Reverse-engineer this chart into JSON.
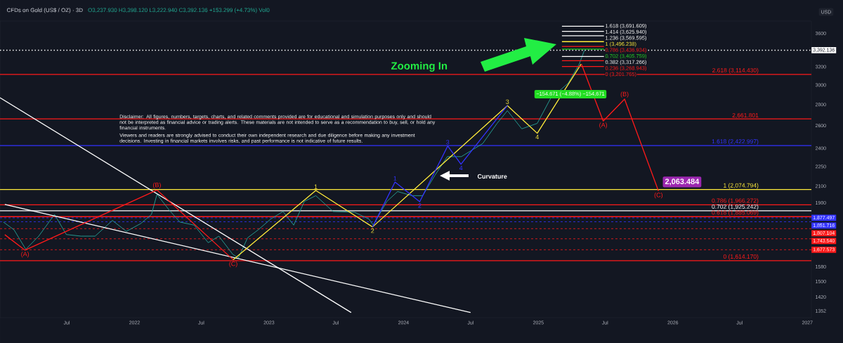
{
  "chart_data": {
    "type": "line",
    "title": "CFDs on Gold (US$ / OZ) · 3D",
    "subtitle": "O3,237.930  H3,398.120  L3,222.940  C3,392.136  +153.299 (+4.73%)  Vol0",
    "ylabel": "USD",
    "log": "y",
    "marker": "none",
    "xlim": [
      "2021-01-01",
      "2027-01-12"
    ],
    "xticks": [
      {
        "value": "2021-07-01",
        "label": "Jul"
      },
      {
        "value": "2022-01-01",
        "label": "2022"
      },
      {
        "value": "2022-07-01",
        "label": "Jul"
      },
      {
        "value": "2023-01-01",
        "label": "2023"
      },
      {
        "value": "2023-07-01",
        "label": "Jul"
      },
      {
        "value": "2024-01-01",
        "label": "2024"
      },
      {
        "value": "2024-07-01",
        "label": "Jul"
      },
      {
        "value": "2025-01-01",
        "label": "2025"
      },
      {
        "value": "2025-07-01",
        "label": "Jul"
      },
      {
        "value": "2026-01-01",
        "label": "2026"
      },
      {
        "value": "2026-07-01",
        "label": "Jul"
      },
      {
        "value": "2027-01-01",
        "label": "2027"
      }
    ],
    "ylim": [
      1320,
      3760
    ],
    "yticks": [
      1352,
      1420,
      1500,
      1580,
      1980,
      2100,
      2250,
      2400,
      2600,
      2800,
      3000,
      3200,
      3600
    ],
    "series": [
      {
        "color": "#26a69a",
        "x": [
          "2021-01-10",
          "2021-02-08",
          "2021-03-12",
          "2021-04-16",
          "2021-05-29",
          "2021-06-30",
          "2021-08-09",
          "2021-09-16",
          "2021-11-02",
          "2021-12-10",
          "2022-01-18",
          "2022-02-16",
          "2022-03-03",
          "2022-04-05",
          "2022-05-04",
          "2022-06-12",
          "2022-07-20",
          "2022-08-18",
          "2022-09-25",
          "2022-10-10",
          "2022-11-04",
          "2022-12-03",
          "2023-01-06",
          "2023-02-08",
          "2023-03-09",
          "2023-04-07",
          "2023-05-08",
          "2023-06-24",
          "2023-08-21",
          "2023-09-29",
          "2023-10-11",
          "2023-11-17",
          "2023-12-16",
          "2024-01-24",
          "2024-02-22",
          "2024-03-26",
          "2024-04-29",
          "2024-06-06",
          "2024-08-03",
          "2024-09-11",
          "2024-10-09",
          "2024-11-17",
          "2024-12-29",
          "2025-02-03",
          "2025-03-23",
          "2025-04-22",
          "2025-05-06"
        ],
        "values": [
          1850,
          1800,
          1680,
          1760,
          1900,
          1770,
          1760,
          1760,
          1860,
          1790,
          1840,
          1900,
          2040,
          1930,
          1850,
          1830,
          1720,
          1760,
          1650,
          1630,
          1750,
          1800,
          1870,
          1920,
          1830,
          1990,
          2030,
          1920,
          1915,
          1870,
          1830,
          1990,
          2060,
          2030,
          2030,
          2180,
          2330,
          2330,
          2440,
          2620,
          2740,
          2570,
          2620,
          2860,
          3020,
          3230,
          3392
        ]
      },
      {
        "color": "#ffffff",
        "x": [
          "2021-01-01",
          "2023-08-12"
        ],
        "values": [
          2868,
          1344
        ]
      },
      {
        "color": "#ffffff",
        "x": [
          "2021-01-14",
          "2024-07-01"
        ],
        "values": [
          1969,
          1344
        ]
      },
      {
        "color": "#ff1a1a",
        "x": [
          "2021-01-14",
          "2021-03-10",
          "2022-03-03",
          "2022-09-26"
        ],
        "values": [
          1769,
          1675,
          2071,
          1619
        ]
      },
      {
        "color": "#ffeb3b",
        "x": [
          "2022-09-26",
          "2023-05-08",
          "2023-10-09",
          "2024-10-09",
          "2024-12-29",
          "2025-04-27"
        ],
        "values": [
          1619,
          2068,
          1818,
          2790,
          2530,
          3230
        ]
      },
      {
        "color": "#3333ff",
        "x": [
          "2023-10-09",
          "2023-12-09",
          "2024-02-14",
          "2024-04-30",
          "2024-06-05",
          "2024-10-09"
        ],
        "values": [
          1818,
          2130,
          1987,
          2419,
          2268,
          2790
        ]
      },
      {
        "color": "#ff1a1a",
        "x": [
          "2025-04-28",
          "2025-06-26",
          "2025-08-23",
          "2025-11-23"
        ],
        "values": [
          3230,
          2642,
          2854,
          2063.484
        ]
      },
      {
        "type": "line",
        "name": "1.618 (3,691.609)",
        "color": "#ffffff",
        "x": [
          "2025-03-06",
          "2025-06-28"
        ],
        "values": [
          3691.609,
          3691.609
        ]
      },
      {
        "type": "line",
        "name": "1.414 (3,625.940)",
        "color": "#ffffff",
        "x": [
          "2025-03-06",
          "2025-06-28"
        ],
        "values": [
          3625.94,
          3625.94
        ]
      },
      {
        "type": "line",
        "name": "1.236 (3,569.595)",
        "color": "#ffffff",
        "x": [
          "2025-03-06",
          "2025-06-28"
        ],
        "values": [
          3569.595,
          3569.595
        ]
      },
      {
        "type": "line",
        "name": "1 (3,496.238)",
        "color": "#ffeb3b",
        "x": [
          "2025-03-06",
          "2025-06-28"
        ],
        "values": [
          3496.238,
          3496.238
        ]
      },
      {
        "type": "line",
        "name": "0.786 (3,436.934)",
        "color": "#ff1a1a",
        "x": [
          "2025-03-06",
          "2025-06-28"
        ],
        "values": [
          3436.934,
          3436.934
        ]
      },
      {
        "type": "line",
        "name": "0.702 (3,405.759)",
        "color": "#22cc22",
        "x": [
          "2025-03-06",
          "2025-06-28"
        ],
        "values": [
          3405.759,
          3405.759
        ]
      },
      {
        "type": "line",
        "name": "0.382 (3,317.266)",
        "color": "#ffffff",
        "x": [
          "2025-03-06",
          "2025-06-28"
        ],
        "values": [
          3317.266,
          3317.266
        ]
      },
      {
        "type": "line",
        "name": "0.236 (3,268.943)",
        "color": "#ff1a1a",
        "x": [
          "2025-03-06",
          "2025-06-28"
        ],
        "values": [
          3268.943,
          3268.943
        ]
      },
      {
        "type": "line",
        "name": "0 (3,201.765)",
        "color": "#ff1a1a",
        "x": [
          "2025-03-06",
          "2025-06-28"
        ],
        "values": [
          3201.765,
          3201.765
        ]
      }
    ],
    "ref_lines": [
      {
        "axis": "y",
        "value": 3392.136,
        "label": "3,392.136",
        "color": "#ffffff",
        "line_style": "dotted"
      },
      {
        "axis": "y",
        "value": 3114.43,
        "label": "2.618 (3,114.430)",
        "color": "#ff1a1a"
      },
      {
        "axis": "y",
        "value": 2661.801,
        "label": "2,661.801",
        "color": "#ff1a1a"
      },
      {
        "axis": "y",
        "value": 2422.997,
        "label": "1.618 (2,422.997)",
        "color": "#3333ff"
      },
      {
        "axis": "y",
        "value": 2074.794,
        "label": "1 (2,074.794)",
        "color": "#ffeb3b"
      },
      {
        "axis": "y",
        "value": 1966.272,
        "label": "0.786 (1,966.272)",
        "color": "#ff1a1a"
      },
      {
        "axis": "y",
        "value": 1925.242,
        "label": "0.702 (1,925.242)",
        "color": "#ffffff"
      },
      {
        "axis": "y",
        "value": 1885.069,
        "label": "0.618 (1,885.069)",
        "color": "#ff1a1a"
      },
      {
        "axis": "y",
        "value": 1877.497,
        "label": "1,877.497",
        "color": "#3333ff",
        "line_style": "dashed"
      },
      {
        "axis": "y",
        "value": 1851.716,
        "label": "1,851.716",
        "color": "#3333ff",
        "line_style": "dashed"
      },
      {
        "axis": "y",
        "value": 1807.104,
        "label": "1,807.104",
        "color": "#ff1a1a",
        "line_style": "dashed"
      },
      {
        "axis": "y",
        "value": 1743.54,
        "label": "1,743.540",
        "color": "#ff1a1a",
        "line_style": "dashed"
      },
      {
        "axis": "y",
        "value": 1677.573,
        "label": "1,677.573",
        "color": "#ff1a1a",
        "line_style": "dashed"
      },
      {
        "axis": "y",
        "value": 1614.17,
        "label": "0 (1,614.170)",
        "color": "#ff1a1a"
      }
    ],
    "annotations": [
      "Zooming In",
      "−154.671 (−4.88%) −154,671",
      "Curvature",
      "Disclaimer: All figures, numbers, targets, charts, and related comments provided are for educational and simulation purposes only and should not be interpreted as financial advice or trading alerts. These materials are not intended to serve as a recommendation to buy, sell, or hold any financial instruments.",
      "Viewers and readers are strongly advised to conduct their own independent research and due diligence before making any investment decisions. Investing in financial markets involves risks, and past performance is not indicative of future results.",
      {
        "text": "2,063.484",
        "x": "2025-11-23",
        "y": 2063.484
      },
      {
        "text": "(A)",
        "x": "2021-03-10",
        "y": 1675
      },
      {
        "text": "(B)",
        "x": "2022-03-03",
        "y": 2071
      },
      {
        "text": "(C)",
        "x": "2022-09-26",
        "y": 1619
      },
      {
        "text": "1",
        "x": "2023-05-08",
        "y": 2068
      },
      {
        "text": "2",
        "x": "2023-10-09",
        "y": 1818
      },
      {
        "text": "3",
        "x": "2024-10-09",
        "y": 2790
      },
      {
        "text": "4",
        "x": "2024-12-29",
        "y": 2530
      },
      {
        "text": "1",
        "x": "2023-12-09",
        "y": 2130
      },
      {
        "text": "2",
        "x": "2024-02-14",
        "y": 1987
      },
      {
        "text": "3",
        "x": "2024-04-30",
        "y": 2419
      },
      {
        "text": "4",
        "x": "2024-06-05",
        "y": 2268
      },
      {
        "text": "(A)",
        "x": "2025-06-26",
        "y": 2642
      },
      {
        "text": "(B)",
        "x": "2025-08-23",
        "y": 2854
      },
      {
        "text": "(C)",
        "x": "2025-11-23",
        "y": 2063.484
      }
    ]
  }
}
